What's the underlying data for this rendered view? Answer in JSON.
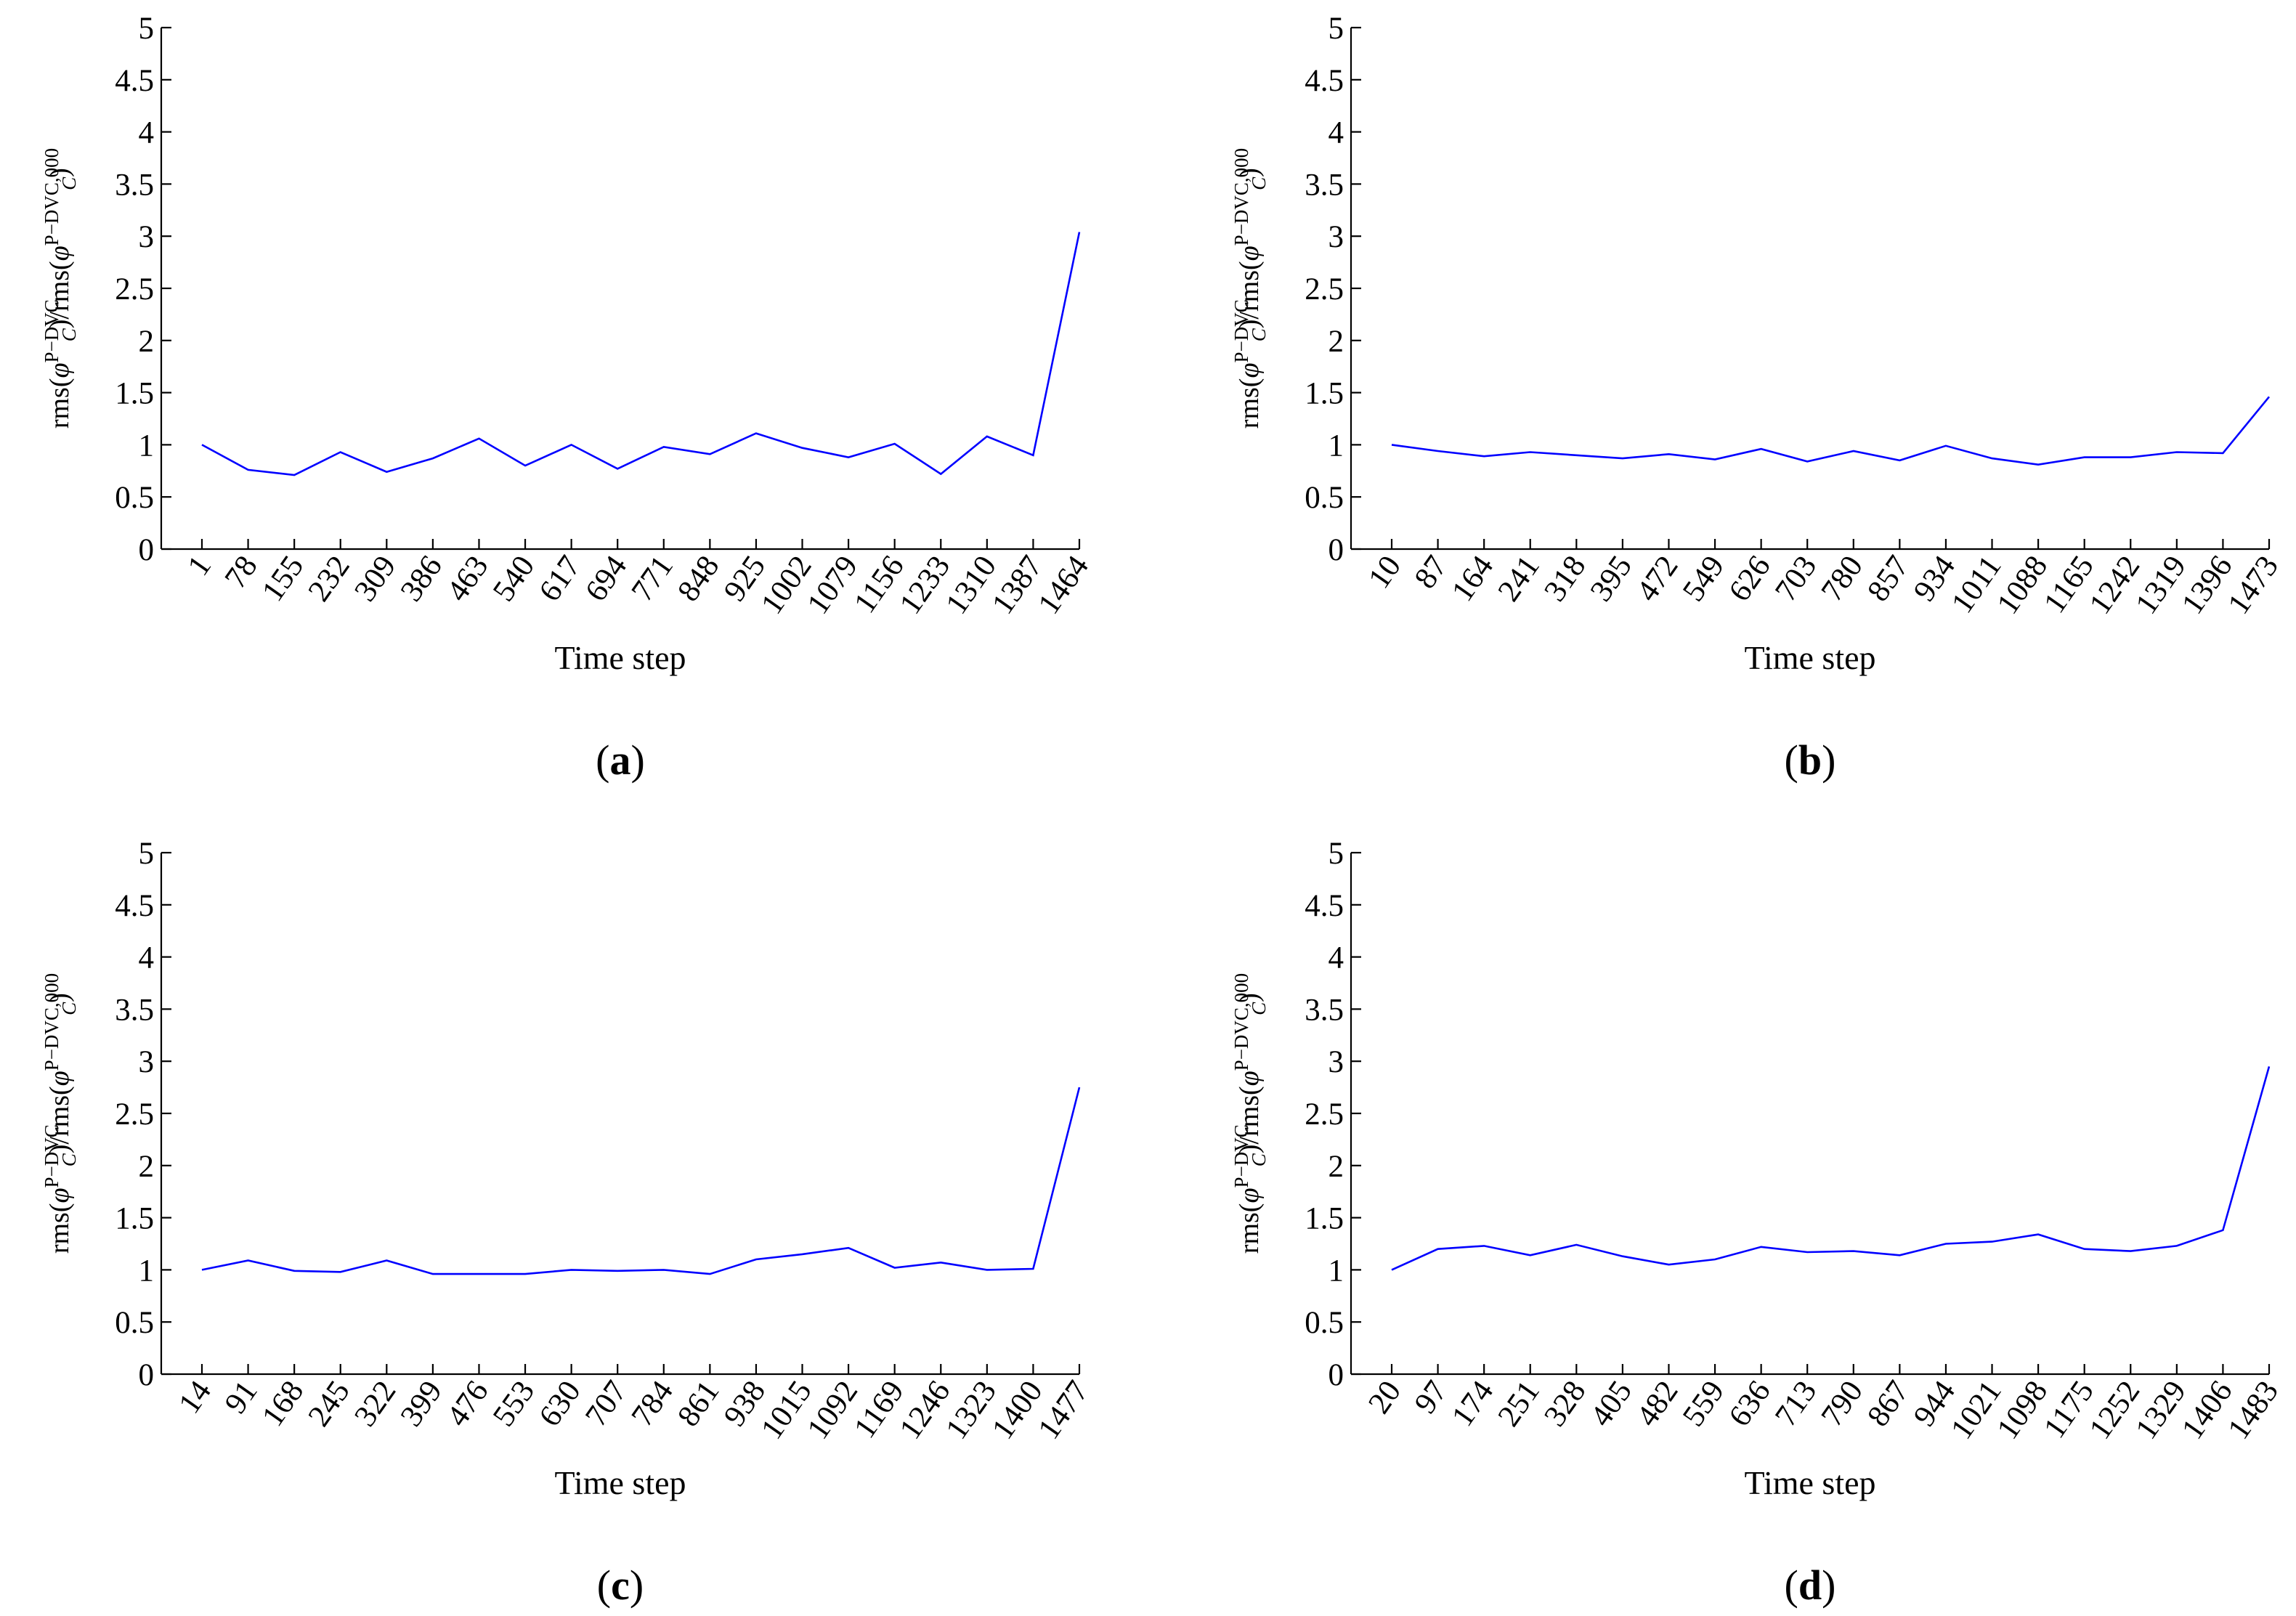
{
  "chart_data": [
    {
      "type": "line",
      "panel_label": "a",
      "xlabel": "Time step",
      "ylabel": {
        "prefix": "rms(",
        "phi": "φ",
        "sub": "C",
        "sup_num": "P−DVC",
        "mid": ")/rms(",
        "sup_den": "P−DVC,000",
        "suffix": ")"
      },
      "ylim": [
        0,
        5
      ],
      "yticks": [
        0,
        0.5,
        1,
        1.5,
        2,
        2.5,
        3,
        3.5,
        4,
        4.5,
        5
      ],
      "ytick_labels": [
        "0",
        "0.5",
        "1",
        "1.5",
        "2",
        "2.5",
        "3",
        "3.5",
        "4",
        "4.5",
        "5"
      ],
      "categories": [
        "1",
        "78",
        "155",
        "232",
        "309",
        "386",
        "463",
        "540",
        "617",
        "694",
        "771",
        "848",
        "925",
        "1002",
        "1079",
        "1156",
        "1233",
        "1310",
        "1387",
        "1464"
      ],
      "series": [
        {
          "values": [
            1.0,
            0.76,
            0.71,
            0.93,
            0.74,
            0.87,
            1.06,
            0.8,
            1.0,
            0.77,
            0.98,
            0.91,
            1.11,
            0.97,
            0.88,
            1.01,
            0.72,
            1.08,
            0.9,
            3.04
          ],
          "color": "#0000ff"
        }
      ]
    },
    {
      "type": "line",
      "panel_label": "b",
      "xlabel": "Time step",
      "ylabel": {
        "prefix": "rms(",
        "phi": "φ",
        "sub": "C",
        "sup_num": "P−DVC",
        "mid": ")/rms(",
        "sup_den": "P−DVC,000",
        "suffix": ")"
      },
      "ylim": [
        0,
        5
      ],
      "yticks": [
        0,
        0.5,
        1,
        1.5,
        2,
        2.5,
        3,
        3.5,
        4,
        4.5,
        5
      ],
      "ytick_labels": [
        "0",
        "0.5",
        "1",
        "1.5",
        "2",
        "2.5",
        "3",
        "3.5",
        "4",
        "4.5",
        "5"
      ],
      "categories": [
        "10",
        "87",
        "164",
        "241",
        "318",
        "395",
        "472",
        "549",
        "626",
        "703",
        "780",
        "857",
        "934",
        "1011",
        "1088",
        "1165",
        "1242",
        "1319",
        "1396",
        "1473"
      ],
      "series": [
        {
          "values": [
            1.0,
            0.94,
            0.89,
            0.93,
            0.9,
            0.87,
            0.91,
            0.86,
            0.96,
            0.84,
            0.94,
            0.85,
            0.99,
            0.87,
            0.81,
            0.88,
            0.88,
            0.93,
            0.92,
            1.46
          ],
          "color": "#0000ff"
        }
      ]
    },
    {
      "type": "line",
      "panel_label": "c",
      "xlabel": "Time step",
      "ylabel": {
        "prefix": "rms(",
        "phi": "φ",
        "sub": "C",
        "sup_num": "P−DVC",
        "mid": ")/rms(",
        "sup_den": "P−DVC,000",
        "suffix": ")"
      },
      "ylim": [
        0,
        5
      ],
      "yticks": [
        0,
        0.5,
        1,
        1.5,
        2,
        2.5,
        3,
        3.5,
        4,
        4.5,
        5
      ],
      "ytick_labels": [
        "0",
        "0.5",
        "1",
        "1.5",
        "2",
        "2.5",
        "3",
        "3.5",
        "4",
        "4.5",
        "5"
      ],
      "categories": [
        "14",
        "91",
        "168",
        "245",
        "322",
        "399",
        "476",
        "553",
        "630",
        "707",
        "784",
        "861",
        "938",
        "1015",
        "1092",
        "1169",
        "1246",
        "1323",
        "1400",
        "1477"
      ],
      "series": [
        {
          "values": [
            1.0,
            1.09,
            0.99,
            0.98,
            1.09,
            0.96,
            0.96,
            0.96,
            1.0,
            0.99,
            1.0,
            0.96,
            1.1,
            1.15,
            1.21,
            1.02,
            1.07,
            1.0,
            1.01,
            2.75
          ],
          "color": "#0000ff"
        }
      ]
    },
    {
      "type": "line",
      "panel_label": "d",
      "xlabel": "Time step",
      "ylabel": {
        "prefix": "rms(",
        "phi": "φ",
        "sub": "C",
        "sup_num": "P−DVC",
        "mid": ")/rms(",
        "sup_den": "P−DVC,000",
        "suffix": ")"
      },
      "ylim": [
        0,
        5
      ],
      "yticks": [
        0,
        0.5,
        1,
        1.5,
        2,
        2.5,
        3,
        3.5,
        4,
        4.5,
        5
      ],
      "ytick_labels": [
        "0",
        "0.5",
        "1",
        "1.5",
        "2",
        "2.5",
        "3",
        "3.5",
        "4",
        "4.5",
        "5"
      ],
      "categories": [
        "20",
        "97",
        "174",
        "251",
        "328",
        "405",
        "482",
        "559",
        "636",
        "713",
        "790",
        "867",
        "944",
        "1021",
        "1098",
        "1175",
        "1252",
        "1329",
        "1406",
        "1483"
      ],
      "series": [
        {
          "values": [
            1.0,
            1.2,
            1.23,
            1.14,
            1.24,
            1.13,
            1.05,
            1.1,
            1.22,
            1.17,
            1.18,
            1.14,
            1.25,
            1.27,
            1.34,
            1.2,
            1.18,
            1.23,
            1.38,
            2.95
          ],
          "color": "#0000ff"
        }
      ]
    }
  ]
}
